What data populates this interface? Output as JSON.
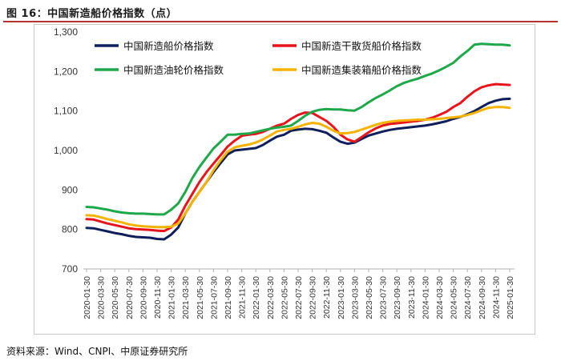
{
  "header": {
    "title": "图 16：中国新造船价格指数（点）"
  },
  "footer": {
    "source": "资料来源：Wind、CNPI、中原证券研究所"
  },
  "chart_data": {
    "type": "line",
    "title": "中国新造船价格指数（点）",
    "xlabel": "",
    "ylabel": "",
    "ylim": [
      700,
      1300
    ],
    "yticks": [
      "700",
      "800",
      "900",
      "1,000",
      "1,100",
      "1,200",
      "1,300"
    ],
    "ytick_values": [
      700,
      800,
      900,
      1000,
      1100,
      1200,
      1300
    ],
    "x": [
      "2020-01",
      "2020-02",
      "2020-03",
      "2020-04",
      "2020-05",
      "2020-06",
      "2020-07",
      "2020-08",
      "2020-09",
      "2020-10",
      "2020-11",
      "2020-12",
      "2021-01",
      "2021-02",
      "2021-03",
      "2021-04",
      "2021-05",
      "2021-06",
      "2021-07",
      "2021-08",
      "2021-09",
      "2021-10",
      "2021-11",
      "2021-12",
      "2022-01",
      "2022-02",
      "2022-03",
      "2022-04",
      "2022-05",
      "2022-06",
      "2022-07",
      "2022-08",
      "2022-09",
      "2022-10",
      "2022-11",
      "2022-12",
      "2023-01",
      "2023-02",
      "2023-03",
      "2023-04",
      "2023-05",
      "2023-06",
      "2023-07",
      "2023-08",
      "2023-09",
      "2023-10",
      "2023-11",
      "2023-12",
      "2024-01",
      "2024-02",
      "2024-03",
      "2024-04",
      "2024-05",
      "2024-06",
      "2024-07",
      "2024-08",
      "2024-09",
      "2024-10",
      "2024-11",
      "2024-12",
      "2025-01"
    ],
    "xtick_labels": [
      "2020-01-30",
      "2020-03-30",
      "2020-05-30",
      "2020-07-30",
      "2020-09-30",
      "2020-11-30",
      "2021-01-30",
      "2021-03-30",
      "2021-05-30",
      "2021-07-30",
      "2021-09-30",
      "2021-11-30",
      "2022-01-30",
      "2022-03-30",
      "2022-05-30",
      "2022-07-30",
      "2022-09-30",
      "2022-11-30",
      "2023-01-30",
      "2023-03-30",
      "2023-05-30",
      "2023-07-30",
      "2023-09-30",
      "2023-11-30",
      "2024-01-30",
      "2024-03-30",
      "2024-05-30",
      "2024-07-30",
      "2024-09-30",
      "2024-11-30",
      "2025-01-30"
    ],
    "legend_position": "top",
    "series": [
      {
        "name": "中国新造船价格指数",
        "color": "#0f1f5c",
        "values": [
          804,
          803,
          799,
          795,
          791,
          788,
          784,
          781,
          780,
          779,
          776,
          775,
          787,
          805,
          840,
          870,
          895,
          920,
          945,
          968,
          990,
          1000,
          1002,
          1004,
          1006,
          1014,
          1025,
          1035,
          1040,
          1050,
          1053,
          1055,
          1054,
          1050,
          1045,
          1033,
          1022,
          1017,
          1020,
          1029,
          1038,
          1043,
          1048,
          1052,
          1055,
          1057,
          1059,
          1061,
          1063,
          1066,
          1070,
          1074,
          1080,
          1085,
          1092,
          1100,
          1110,
          1120,
          1126,
          1130,
          1131
        ]
      },
      {
        "name": "中国新造干散货船价格指数",
        "color": "#e8141c",
        "values": [
          826,
          825,
          820,
          815,
          811,
          807,
          803,
          801,
          800,
          799,
          797,
          796,
          805,
          825,
          860,
          890,
          920,
          945,
          967,
          988,
          1010,
          1025,
          1037,
          1040,
          1042,
          1047,
          1055,
          1063,
          1068,
          1080,
          1090,
          1096,
          1095,
          1085,
          1075,
          1060,
          1040,
          1028,
          1022,
          1034,
          1046,
          1056,
          1063,
          1067,
          1069,
          1071,
          1073,
          1075,
          1078,
          1083,
          1090,
          1098,
          1110,
          1120,
          1136,
          1150,
          1160,
          1165,
          1168,
          1167,
          1166
        ]
      },
      {
        "name": "中国新造油轮价格指数",
        "color": "#1ea84a",
        "values": [
          857,
          856,
          853,
          850,
          846,
          843,
          841,
          840,
          840,
          839,
          838,
          838,
          850,
          866,
          895,
          930,
          958,
          982,
          1005,
          1022,
          1040,
          1040,
          1042,
          1043,
          1047,
          1051,
          1055,
          1058,
          1060,
          1063,
          1075,
          1088,
          1098,
          1103,
          1105,
          1104,
          1104,
          1102,
          1101,
          1110,
          1122,
          1133,
          1142,
          1152,
          1163,
          1171,
          1177,
          1182,
          1189,
          1195,
          1203,
          1212,
          1222,
          1238,
          1252,
          1268,
          1270,
          1269,
          1268,
          1268,
          1266
        ]
      },
      {
        "name": "中国新造集装箱船价格指数",
        "color": "#f5b300",
        "values": [
          836,
          835,
          831,
          826,
          822,
          818,
          813,
          810,
          808,
          807,
          806,
          806,
          807,
          815,
          840,
          870,
          895,
          920,
          950,
          975,
          997,
          1008,
          1012,
          1015,
          1020,
          1028,
          1038,
          1048,
          1052,
          1055,
          1060,
          1066,
          1070,
          1068,
          1060,
          1050,
          1043,
          1044,
          1047,
          1053,
          1059,
          1065,
          1070,
          1073,
          1075,
          1076,
          1077,
          1078,
          1078,
          1079,
          1080,
          1082,
          1084,
          1086,
          1090,
          1095,
          1102,
          1108,
          1110,
          1110,
          1108
        ]
      }
    ]
  }
}
